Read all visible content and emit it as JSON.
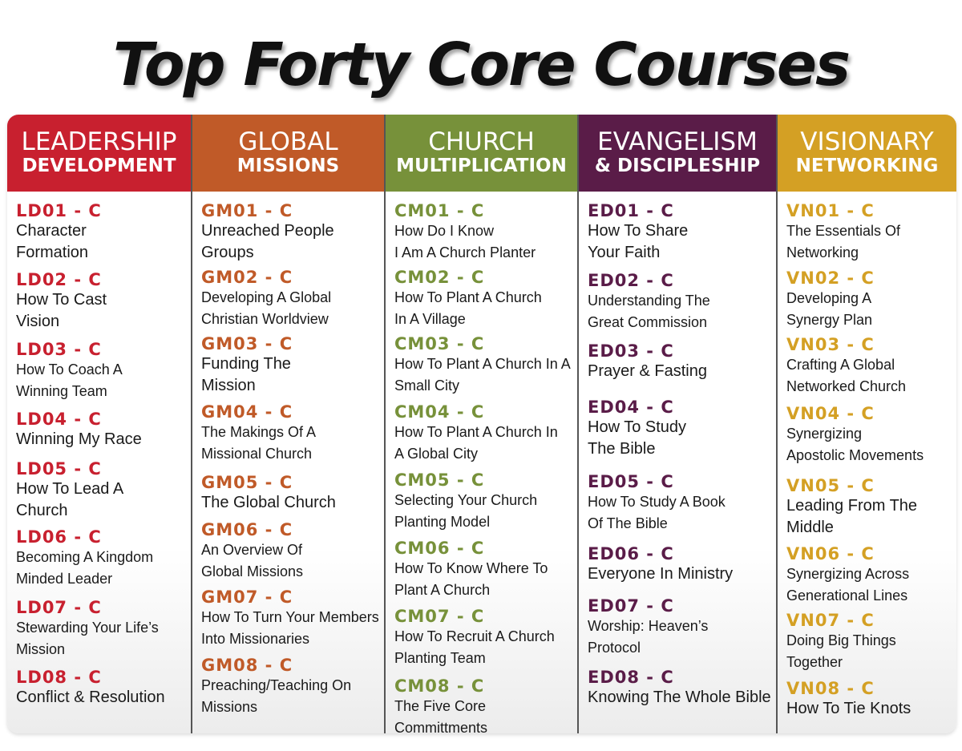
{
  "title": "Top Forty Core Courses",
  "colors": {
    "ld": "#c8202f",
    "gm": "#c05a28",
    "cm": "#77913a",
    "ed": "#5a1c48",
    "vn": "#d4a024"
  },
  "columns": [
    {
      "key": "ld",
      "header_line1": "LEADERSHIP",
      "header_line2": "DEVELOPMENT",
      "courses": [
        {
          "code": "LD01 - C",
          "name": "Character\nFormation"
        },
        {
          "code": "LD02 - C",
          "name": "How To Cast\nVision"
        },
        {
          "code": "LD03 - C",
          "name": "How To Coach A\nWinning Team"
        },
        {
          "code": "LD04 - C",
          "name": "Winning My Race"
        },
        {
          "code": "LD05 - C",
          "name": "How To Lead A\nChurch"
        },
        {
          "code": "LD06 - C",
          "name": "Becoming A Kingdom\nMinded Leader"
        },
        {
          "code": "LD07 - C",
          "name": "Stewarding Your Life’s\nMission"
        },
        {
          "code": "LD08 - C",
          "name": "Conflict & Resolution"
        }
      ]
    },
    {
      "key": "gm",
      "header_line1": "GLOBAL",
      "header_line2": "MISSIONS",
      "courses": [
        {
          "code": "GM01 - C",
          "name": "Unreached People\nGroups"
        },
        {
          "code": "GM02 - C",
          "name": "Developing A Global\nChristian Worldview"
        },
        {
          "code": "GM03 - C",
          "name": "Funding The\nMission"
        },
        {
          "code": "GM04 - C",
          "name": "The Makings Of A\nMissional Church"
        },
        {
          "code": "GM05 - C",
          "name": "The Global Church"
        },
        {
          "code": "GM06 - C",
          "name": "An Overview Of\nGlobal Missions"
        },
        {
          "code": "GM07 - C",
          "name": "How To Turn Your Members\nInto Missionaries"
        },
        {
          "code": "GM08 - C",
          "name": "Preaching/Teaching On\nMissions"
        }
      ]
    },
    {
      "key": "cm",
      "header_line1": "CHURCH",
      "header_line2": "MULTIPLICATION",
      "courses": [
        {
          "code": "CM01 - C",
          "name": "How Do I Know\nI Am A Church Planter"
        },
        {
          "code": "CM02 - C",
          "name": "How To Plant A Church\nIn A Village"
        },
        {
          "code": "CM03 - C",
          "name": "How To Plant A Church In A\nSmall City"
        },
        {
          "code": "CM04 - C",
          "name": "How To Plant A Church In\nA Global City"
        },
        {
          "code": "CM05 - C",
          "name": "Selecting Your Church\nPlanting Model"
        },
        {
          "code": "CM06 - C",
          "name": "How To Know Where To\nPlant A Church"
        },
        {
          "code": "CM07 - C",
          "name": "How To Recruit A Church\nPlanting Team"
        },
        {
          "code": "CM08 - C",
          "name": "The Five Core Committments"
        }
      ]
    },
    {
      "key": "ed",
      "header_line1": "EVANGELISM",
      "header_line2": "& DISCIPLESHIP",
      "courses": [
        {
          "code": "ED01 - C",
          "name": "How To Share\nYour Faith"
        },
        {
          "code": "ED02 - C",
          "name": "Understanding The\nGreat Commission"
        },
        {
          "code": "ED03 - C",
          "name": "Prayer & Fasting"
        },
        {
          "code": "ED04 - C",
          "name": "How To Study\nThe Bible"
        },
        {
          "code": "ED05 - C",
          "name": "How To Study A Book\nOf The Bible"
        },
        {
          "code": "ED06 - C",
          "name": "Everyone In Ministry"
        },
        {
          "code": "ED07 - C",
          "name": "Worship: Heaven’s\nProtocol"
        },
        {
          "code": "ED08 - C",
          "name": "Knowing The Whole Bible"
        }
      ]
    },
    {
      "key": "vn",
      "header_line1": "VISIONARY",
      "header_line2": "NETWORKING",
      "courses": [
        {
          "code": "VN01 - C",
          "name": "The Essentials Of\nNetworking"
        },
        {
          "code": "VN02 - C",
          "name": "Developing A\nSynergy Plan"
        },
        {
          "code": "VN03 - C",
          "name": "Crafting A Global\nNetworked Church"
        },
        {
          "code": "VN04 - C",
          "name": "Synergizing\nApostolic Movements"
        },
        {
          "code": "VN05 - C",
          "name": "Leading From The\nMiddle"
        },
        {
          "code": "VN06 - C",
          "name": "Synergizing Across\nGenerational Lines"
        },
        {
          "code": "VN07 - C",
          "name": "Doing Big Things\nTogether"
        },
        {
          "code": "VN08 - C",
          "name": "How To Tie Knots"
        }
      ]
    }
  ]
}
